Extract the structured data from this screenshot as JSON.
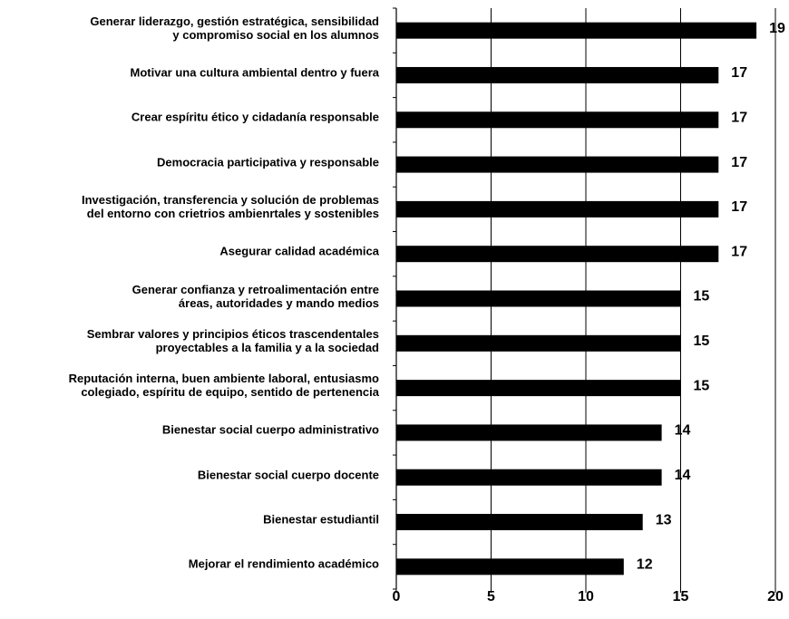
{
  "chart_data": {
    "type": "hbar",
    "categories": [
      "Generar liderazgo, gestión estratégica, sensibilidad\ny compromiso social en los alumnos",
      "Motivar una cultura ambiental dentro y fuera",
      "Crear espíritu ético y cidadanía responsable",
      "Democracia participativa y responsable",
      "Investigación, transferencia y solución de problemas\ndel entorno con crietrios ambienrtales y sostenibles",
      "Asegurar calidad académica",
      "Generar confianza y retroalimentación entre\náreas, autoridades y mando medios",
      "Sembrar valores y principios éticos trascendentales\nproyectables a la familia y a la sociedad",
      "Reputación interna, buen ambiente laboral, entusiasmo\ncolegiado, espíritu de equipo, sentido de pertenencia",
      "Bienestar social cuerpo administrativo",
      "Bienestar social cuerpo docente",
      "Bienestar estudiantil",
      "Mejorar el rendimiento académico"
    ],
    "values": [
      19,
      17,
      17,
      17,
      17,
      17,
      15,
      15,
      15,
      14,
      14,
      13,
      12
    ],
    "color": "#000000",
    "xlim": [
      0,
      20
    ],
    "xticks": [
      0,
      5,
      10,
      15,
      20
    ],
    "grid": true
  }
}
